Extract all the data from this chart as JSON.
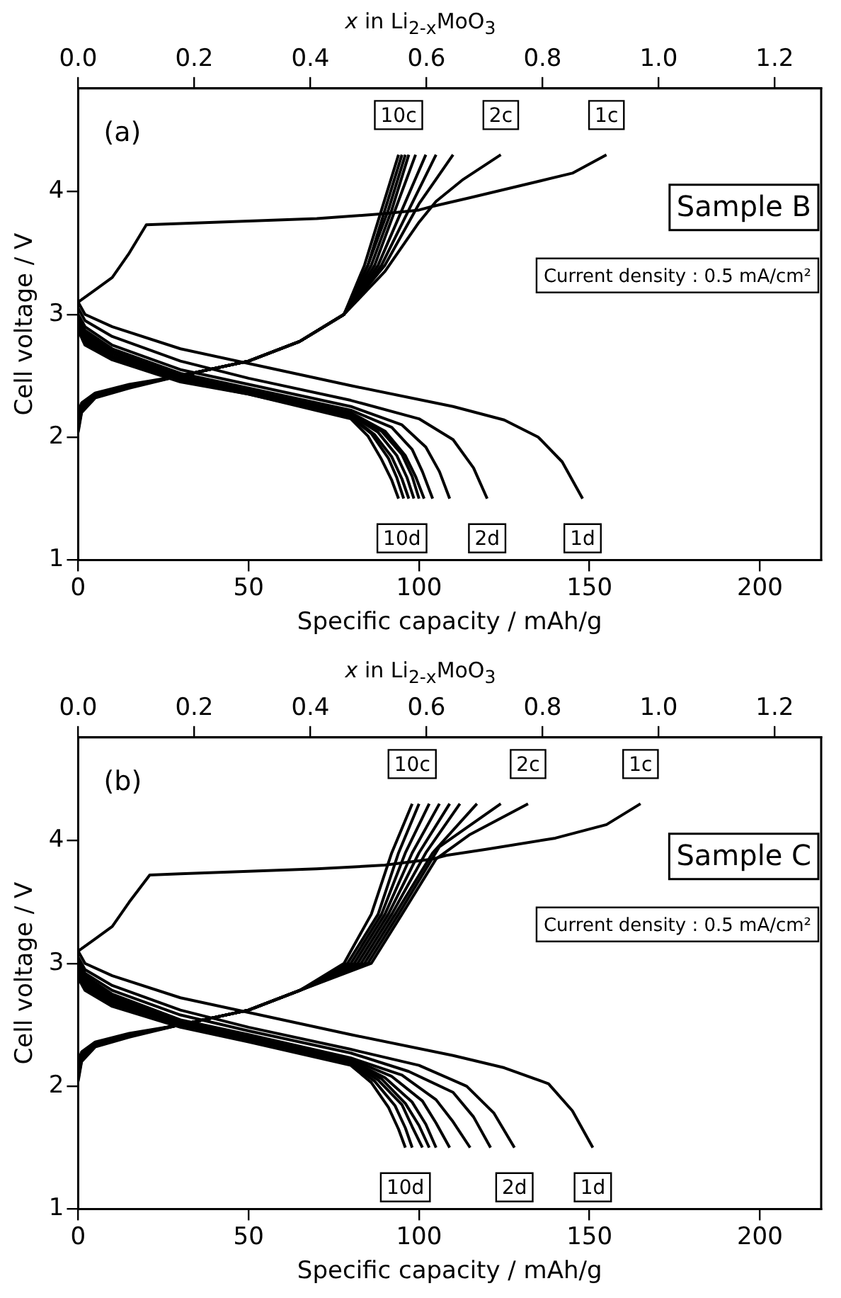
{
  "chart_data": [
    {
      "type": "line",
      "xlabel": "Specific capacity / mAh/g",
      "ylabel": "Cell voltage / V",
      "x2label": "x  in Li$_{2-x}$MoO$_{3}$",
      "xlim": [
        0,
        218
      ],
      "xticks": [
        0,
        50,
        100,
        150,
        200
      ],
      "ylim": [
        1,
        4.84
      ],
      "yticks": [
        1,
        2,
        3,
        4
      ],
      "x2lim": [
        0,
        1.28
      ],
      "x2ticks": [
        {
          "value": 0,
          "label": "0.0"
        },
        {
          "value": 0.2,
          "label": "0.2"
        },
        {
          "value": 0.4,
          "label": "0.4"
        },
        {
          "value": 0.6,
          "label": "0.6"
        },
        {
          "value": 0.8,
          "label": "0.8"
        },
        {
          "value": 1.0,
          "label": "1.0"
        },
        {
          "value": 1.2,
          "label": "1.2"
        }
      ],
      "grid": false,
      "legend": false,
      "series": [
        {
          "color": "#000000",
          "x": [
            0,
            5,
            10,
            15,
            20,
            30,
            50,
            70,
            90,
            100,
            104,
            115,
            130,
            145,
            155
          ],
          "values": [
            3.1,
            3.2,
            3.3,
            3.5,
            3.73,
            3.74,
            3.76,
            3.78,
            3.82,
            3.85,
            3.88,
            3.95,
            4.05,
            4.15,
            4.3
          ]
        },
        {
          "color": "#000000",
          "x": [
            0,
            1,
            5,
            15,
            30,
            50,
            65,
            78,
            90,
            100,
            105,
            113,
            124
          ],
          "values": [
            2.2,
            2.28,
            2.36,
            2.43,
            2.5,
            2.62,
            2.78,
            3.0,
            3.35,
            3.75,
            3.92,
            4.1,
            4.3
          ]
        },
        {
          "color": "#000000",
          "x": [
            0,
            1,
            5,
            15,
            30,
            50,
            65,
            78,
            90,
            100,
            110
          ],
          "values": [
            2.18,
            2.27,
            2.35,
            2.42,
            2.5,
            2.62,
            2.78,
            3.0,
            3.4,
            3.9,
            4.3
          ]
        },
        {
          "color": "#000000",
          "x": [
            0,
            1,
            5,
            15,
            30,
            50,
            65,
            78,
            89,
            97,
            105
          ],
          "values": [
            2.16,
            2.26,
            2.35,
            2.42,
            2.5,
            2.62,
            2.78,
            3.0,
            3.4,
            3.85,
            4.3
          ]
        },
        {
          "color": "#000000",
          "x": [
            0,
            1,
            5,
            15,
            30,
            50,
            65,
            78,
            88,
            95,
            102
          ],
          "values": [
            2.14,
            2.25,
            2.35,
            2.42,
            2.5,
            2.62,
            2.78,
            3.0,
            3.4,
            3.85,
            4.3
          ]
        },
        {
          "color": "#000000",
          "x": [
            0,
            1,
            5,
            15,
            30,
            50,
            65,
            78,
            87,
            93,
            99
          ],
          "values": [
            2.12,
            2.24,
            2.34,
            2.42,
            2.5,
            2.62,
            2.78,
            3.0,
            3.4,
            3.85,
            4.3
          ]
        },
        {
          "color": "#000000",
          "x": [
            0,
            1,
            5,
            15,
            30,
            50,
            65,
            78,
            86,
            92,
            97
          ],
          "values": [
            2.1,
            2.23,
            2.34,
            2.41,
            2.5,
            2.62,
            2.78,
            3.0,
            3.4,
            3.85,
            4.3
          ]
        },
        {
          "color": "#000000",
          "x": [
            0,
            1,
            5,
            15,
            30,
            50,
            65,
            78,
            85,
            91,
            96
          ],
          "values": [
            2.08,
            2.22,
            2.33,
            2.41,
            2.5,
            2.62,
            2.78,
            3.0,
            3.4,
            3.85,
            4.3
          ]
        },
        {
          "color": "#000000",
          "x": [
            0,
            1,
            5,
            15,
            30,
            50,
            65,
            78,
            85,
            90,
            95
          ],
          "values": [
            2.06,
            2.21,
            2.33,
            2.41,
            2.5,
            2.62,
            2.78,
            3.0,
            3.4,
            3.85,
            4.3
          ]
        },
        {
          "color": "#000000",
          "x": [
            0,
            1,
            5,
            15,
            30,
            50,
            65,
            78,
            84,
            89,
            94
          ],
          "values": [
            2.04,
            2.2,
            2.32,
            2.4,
            2.5,
            2.62,
            2.78,
            3.0,
            3.4,
            3.85,
            4.3
          ]
        },
        {
          "color": "#000000",
          "x": [
            0,
            2,
            10,
            30,
            50,
            80,
            110,
            125,
            135,
            142,
            148
          ],
          "values": [
            3.1,
            3.0,
            2.9,
            2.72,
            2.6,
            2.42,
            2.25,
            2.14,
            2.0,
            1.8,
            1.5
          ]
        },
        {
          "color": "#000000",
          "x": [
            0,
            2,
            10,
            30,
            50,
            80,
            100,
            110,
            116,
            120
          ],
          "values": [
            3.05,
            2.95,
            2.82,
            2.62,
            2.48,
            2.3,
            2.15,
            1.98,
            1.75,
            1.5
          ]
        },
        {
          "color": "#000000",
          "x": [
            0,
            2,
            10,
            30,
            50,
            80,
            95,
            102,
            106,
            109
          ],
          "values": [
            3.0,
            2.9,
            2.75,
            2.55,
            2.43,
            2.25,
            2.1,
            1.92,
            1.72,
            1.5
          ]
        },
        {
          "color": "#000000",
          "x": [
            0,
            2,
            10,
            30,
            50,
            80,
            92,
            98,
            101,
            104
          ],
          "values": [
            2.98,
            2.87,
            2.72,
            2.52,
            2.4,
            2.22,
            2.08,
            1.9,
            1.72,
            1.5
          ]
        },
        {
          "color": "#000000",
          "x": [
            0,
            2,
            10,
            30,
            50,
            80,
            90,
            96,
            99,
            101.5
          ],
          "values": [
            2.96,
            2.85,
            2.7,
            2.5,
            2.38,
            2.2,
            2.05,
            1.85,
            1.68,
            1.5
          ]
        },
        {
          "color": "#000000",
          "x": [
            0,
            2,
            10,
            30,
            50,
            80,
            89,
            95,
            98,
            100
          ],
          "values": [
            2.95,
            2.83,
            2.68,
            2.49,
            2.37,
            2.19,
            2.05,
            1.86,
            1.68,
            1.5
          ]
        },
        {
          "color": "#000000",
          "x": [
            0,
            2,
            10,
            30,
            50,
            80,
            88,
            93.5,
            96.5,
            98.5
          ],
          "values": [
            2.93,
            2.81,
            2.66,
            2.48,
            2.36,
            2.18,
            2.04,
            1.85,
            1.67,
            1.5
          ]
        },
        {
          "color": "#000000",
          "x": [
            0,
            2,
            10,
            30,
            50,
            80,
            87,
            92,
            95,
            97
          ],
          "values": [
            2.91,
            2.79,
            2.65,
            2.47,
            2.36,
            2.17,
            2.02,
            1.84,
            1.66,
            1.5
          ]
        },
        {
          "color": "#000000",
          "x": [
            0,
            2,
            10,
            30,
            50,
            80,
            86,
            91,
            93.5,
            95.5
          ],
          "values": [
            2.89,
            2.77,
            2.64,
            2.46,
            2.35,
            2.16,
            2.03,
            1.83,
            1.67,
            1.5
          ]
        },
        {
          "color": "#000000",
          "x": [
            0,
            2,
            10,
            30,
            50,
            80,
            85,
            89,
            92,
            94
          ],
          "values": [
            2.87,
            2.75,
            2.63,
            2.45,
            2.35,
            2.15,
            2.01,
            1.82,
            1.65,
            1.5
          ]
        }
      ],
      "annotations": [
        "(a)",
        "Sample B",
        "Current density : 0.5 mA/cm²",
        {
          "text": "10c",
          "x": 94,
          "y": 4.3
        },
        {
          "text": "2c",
          "x": 124,
          "y": 4.3
        },
        {
          "text": "1c",
          "x": 155,
          "y": 4.3
        },
        {
          "text": "10d",
          "x": 95,
          "y": 1.5
        },
        {
          "text": "2d",
          "x": 120,
          "y": 1.5
        },
        {
          "text": "1d",
          "x": 148,
          "y": 1.5
        }
      ]
    },
    {
      "type": "line",
      "xlabel": "Specific capacity / mAh/g",
      "ylabel": "Cell voltage / V",
      "x2label": "x  in Li$_{2-x}$MoO$_{3}$",
      "xlim": [
        0,
        218
      ],
      "xticks": [
        0,
        50,
        100,
        150,
        200
      ],
      "ylim": [
        1,
        4.84
      ],
      "yticks": [
        1,
        2,
        3,
        4
      ],
      "x2lim": [
        0,
        1.28
      ],
      "x2ticks": [
        {
          "value": 0,
          "label": "0.0"
        },
        {
          "value": 0.2,
          "label": "0.2"
        },
        {
          "value": 0.4,
          "label": "0.4"
        },
        {
          "value": 0.6,
          "label": "0.6"
        },
        {
          "value": 0.8,
          "label": "0.8"
        },
        {
          "value": 1.0,
          "label": "1.0"
        },
        {
          "value": 1.2,
          "label": "1.2"
        }
      ],
      "grid": false,
      "legend": false,
      "series": [
        {
          "color": "#000000",
          "x": [
            0,
            5,
            10,
            15,
            21,
            30,
            50,
            70,
            90,
            104,
            108,
            120,
            140,
            155,
            165
          ],
          "values": [
            3.1,
            3.2,
            3.3,
            3.5,
            3.72,
            3.73,
            3.75,
            3.77,
            3.8,
            3.85,
            3.88,
            3.93,
            4.02,
            4.13,
            4.3
          ]
        },
        {
          "color": "#000000",
          "x": [
            0,
            1,
            5,
            15,
            30,
            50,
            65,
            86,
            95,
            105,
            115,
            132
          ],
          "values": [
            2.2,
            2.28,
            2.36,
            2.43,
            2.5,
            2.62,
            2.78,
            3.0,
            3.4,
            3.85,
            4.05,
            4.3
          ]
        },
        {
          "color": "#000000",
          "x": [
            0,
            1,
            5,
            15,
            30,
            50,
            65,
            85,
            94,
            106,
            124
          ],
          "values": [
            2.18,
            2.27,
            2.35,
            2.42,
            2.5,
            2.62,
            2.78,
            3.0,
            3.4,
            3.95,
            4.3
          ]
        },
        {
          "color": "#000000",
          "x": [
            0,
            1,
            5,
            15,
            30,
            50,
            65,
            84,
            93,
            104,
            117
          ],
          "values": [
            2.16,
            2.26,
            2.35,
            2.42,
            2.5,
            2.62,
            2.78,
            3.0,
            3.4,
            3.9,
            4.3
          ]
        },
        {
          "color": "#000000",
          "x": [
            0,
            1,
            5,
            15,
            30,
            50,
            65,
            83,
            92,
            102,
            112
          ],
          "values": [
            2.14,
            2.25,
            2.35,
            2.42,
            2.5,
            2.62,
            2.78,
            3.0,
            3.4,
            3.9,
            4.3
          ]
        },
        {
          "color": "#000000",
          "x": [
            0,
            1,
            5,
            15,
            30,
            50,
            65,
            82,
            91,
            100,
            109
          ],
          "values": [
            2.12,
            2.24,
            2.34,
            2.42,
            2.5,
            2.62,
            2.78,
            3.0,
            3.4,
            3.9,
            4.3
          ]
        },
        {
          "color": "#000000",
          "x": [
            0,
            1,
            5,
            15,
            30,
            50,
            65,
            81,
            90,
            98,
            106
          ],
          "values": [
            2.1,
            2.23,
            2.34,
            2.41,
            2.5,
            2.62,
            2.78,
            3.0,
            3.4,
            3.9,
            4.3
          ]
        },
        {
          "color": "#000000",
          "x": [
            0,
            1,
            5,
            15,
            30,
            50,
            65,
            80,
            89,
            96,
            103
          ],
          "values": [
            2.08,
            2.22,
            2.33,
            2.41,
            2.5,
            2.62,
            2.78,
            3.0,
            3.4,
            3.9,
            4.3
          ]
        },
        {
          "color": "#000000",
          "x": [
            0,
            1,
            5,
            15,
            30,
            50,
            65,
            79,
            88,
            94,
            100
          ],
          "values": [
            2.06,
            2.21,
            2.33,
            2.41,
            2.5,
            2.62,
            2.78,
            3.0,
            3.4,
            3.9,
            4.3
          ]
        },
        {
          "color": "#000000",
          "x": [
            0,
            1,
            5,
            15,
            30,
            50,
            65,
            78,
            86,
            92,
            98
          ],
          "values": [
            2.04,
            2.2,
            2.32,
            2.4,
            2.5,
            2.62,
            2.78,
            3.0,
            3.4,
            3.9,
            4.3
          ]
        },
        {
          "color": "#000000",
          "x": [
            0,
            2,
            10,
            30,
            50,
            80,
            110,
            125,
            138,
            145,
            151
          ],
          "values": [
            3.1,
            3.0,
            2.9,
            2.72,
            2.6,
            2.42,
            2.25,
            2.15,
            2.02,
            1.8,
            1.5
          ]
        },
        {
          "color": "#000000",
          "x": [
            0,
            2,
            10,
            30,
            50,
            80,
            100,
            114,
            122,
            128
          ],
          "values": [
            3.05,
            2.95,
            2.82,
            2.62,
            2.48,
            2.3,
            2.17,
            2.0,
            1.78,
            1.5
          ]
        },
        {
          "color": "#000000",
          "x": [
            0,
            2,
            10,
            30,
            50,
            80,
            97,
            110,
            116,
            121
          ],
          "values": [
            3.02,
            2.92,
            2.78,
            2.58,
            2.45,
            2.27,
            2.12,
            1.95,
            1.75,
            1.5
          ]
        },
        {
          "color": "#000000",
          "x": [
            0,
            2,
            10,
            30,
            50,
            80,
            95,
            105,
            110,
            115
          ],
          "values": [
            3.0,
            2.9,
            2.75,
            2.54,
            2.42,
            2.23,
            2.09,
            1.89,
            1.71,
            1.5
          ]
        },
        {
          "color": "#000000",
          "x": [
            0,
            2,
            10,
            30,
            50,
            80,
            92,
            101,
            105,
            109
          ],
          "values": [
            2.98,
            2.88,
            2.73,
            2.53,
            2.41,
            2.22,
            2.08,
            1.88,
            1.7,
            1.5
          ]
        },
        {
          "color": "#000000",
          "x": [
            0,
            2,
            10,
            30,
            50,
            80,
            90,
            98,
            102,
            105
          ],
          "values": [
            2.96,
            2.86,
            2.71,
            2.52,
            2.4,
            2.21,
            2.07,
            1.87,
            1.69,
            1.5
          ]
        },
        {
          "color": "#000000",
          "x": [
            0,
            2,
            10,
            30,
            50,
            80,
            89,
            96,
            100,
            103
          ],
          "values": [
            2.94,
            2.84,
            2.7,
            2.51,
            2.39,
            2.2,
            2.06,
            1.86,
            1.68,
            1.5
          ]
        },
        {
          "color": "#000000",
          "x": [
            0,
            2,
            10,
            30,
            50,
            80,
            88,
            95,
            98,
            101
          ],
          "values": [
            2.92,
            2.82,
            2.69,
            2.5,
            2.38,
            2.19,
            2.05,
            1.85,
            1.67,
            1.5
          ]
        },
        {
          "color": "#000000",
          "x": [
            0,
            2,
            10,
            30,
            50,
            80,
            87,
            93,
            96,
            98
          ],
          "values": [
            2.9,
            2.8,
            2.67,
            2.49,
            2.37,
            2.18,
            2.04,
            1.84,
            1.66,
            1.5
          ]
        },
        {
          "color": "#000000",
          "x": [
            0,
            2,
            10,
            30,
            50,
            80,
            86,
            91,
            94,
            96
          ],
          "values": [
            2.88,
            2.78,
            2.65,
            2.48,
            2.36,
            2.17,
            2.03,
            1.83,
            1.65,
            1.5
          ]
        }
      ],
      "annotations": [
        "(b)",
        "Sample C",
        "Current density : 0.5 mA/cm²",
        {
          "text": "10c",
          "x": 98,
          "y": 4.3
        },
        {
          "text": "2c",
          "x": 132,
          "y": 4.3
        },
        {
          "text": "1c",
          "x": 165,
          "y": 4.3
        },
        {
          "text": "10d",
          "x": 96,
          "y": 1.5
        },
        {
          "text": "2d",
          "x": 128,
          "y": 1.5
        },
        {
          "text": "1d",
          "x": 151,
          "y": 1.5
        }
      ]
    }
  ]
}
